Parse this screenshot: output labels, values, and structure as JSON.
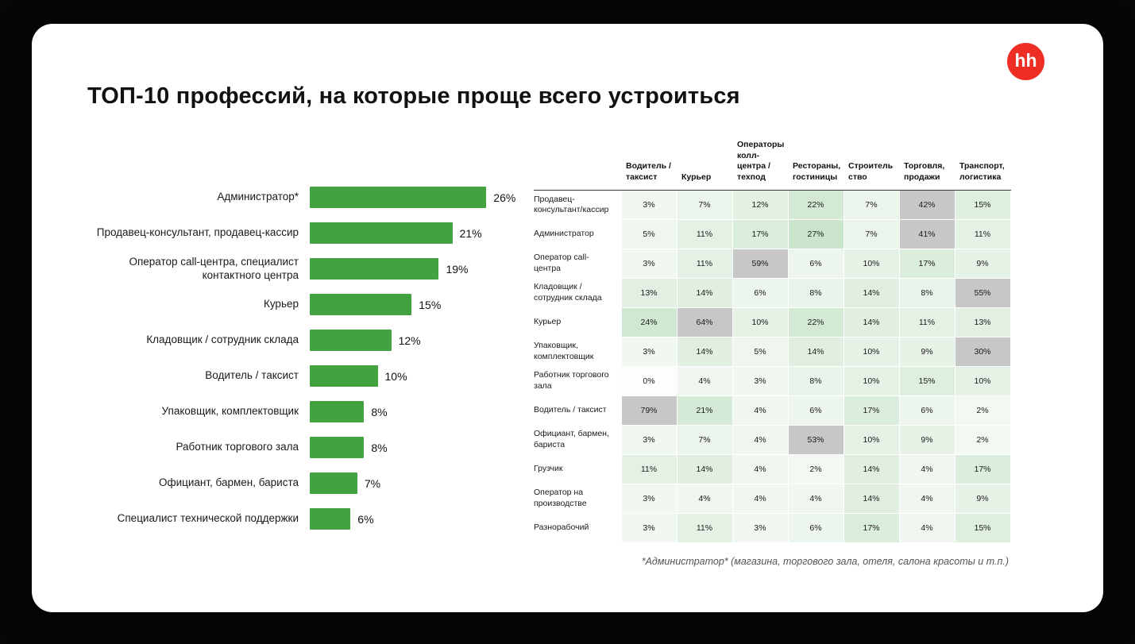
{
  "page": {
    "title": "ТОП-10 профессий, на которые проще всего устроиться",
    "logo_text": "hh",
    "footnote": "*Администратор* (магазина, торгового зала, отеля, салона красоты и т.п.)"
  },
  "colors": {
    "bar_green": "#44a13f",
    "heat_green": "#43a047",
    "heat_gray": "#c7c7c7",
    "logo_red": "#ee2e24"
  },
  "chart_data": [
    {
      "type": "bar",
      "orientation": "horizontal",
      "title": "ТОП-10 профессий, на которые проще всего устроиться",
      "unit": "%",
      "xlim": [
        0,
        30
      ],
      "categories": [
        "Администратор*",
        "Продавец-консультант, продавец-кассир",
        "Оператор call-центра, специалист контактного центра",
        "Курьер",
        "Кладовщик / сотрудник склада",
        "Водитель / таксист",
        "Упаковщик, комплектовщик",
        "Работник торгового зала",
        "Официант, бармен, бариста",
        "Специалист технической поддержки"
      ],
      "values": [
        26,
        21,
        19,
        15,
        12,
        10,
        8,
        8,
        7,
        6
      ]
    },
    {
      "type": "heatmap",
      "unit": "%",
      "gray_threshold": 30,
      "columns": [
        "Водитель / таксист",
        "Курьер",
        "Операторы колл-центра / техпод",
        "Рестораны, гостиницы",
        "Строительство",
        "Торговля, продажи",
        "Транспорт, логистика"
      ],
      "rows": [
        "Продавец-консультант/кассир",
        "Администратор",
        "Оператор call-центра",
        "Кладовщик / сотрудник склада",
        "Курьер",
        "Упаковщик, комплектовщик",
        "Работник торгового зала",
        "Водитель / таксист",
        "Официант, бармен, бариста",
        "Грузчик",
        "Оператор на производстве",
        "Разнорабочий"
      ],
      "values": [
        [
          3,
          7,
          12,
          22,
          7,
          42,
          15
        ],
        [
          5,
          11,
          17,
          27,
          7,
          41,
          11
        ],
        [
          3,
          11,
          59,
          6,
          10,
          17,
          9
        ],
        [
          13,
          14,
          6,
          8,
          14,
          8,
          55
        ],
        [
          24,
          64,
          10,
          22,
          14,
          11,
          13
        ],
        [
          3,
          14,
          5,
          14,
          10,
          9,
          30
        ],
        [
          0,
          4,
          3,
          8,
          10,
          15,
          10
        ],
        [
          79,
          21,
          4,
          6,
          17,
          6,
          2
        ],
        [
          3,
          7,
          4,
          53,
          10,
          9,
          2
        ],
        [
          11,
          14,
          4,
          2,
          14,
          4,
          17
        ],
        [
          3,
          4,
          4,
          4,
          14,
          4,
          9
        ],
        [
          3,
          11,
          3,
          6,
          17,
          4,
          15
        ]
      ]
    }
  ]
}
